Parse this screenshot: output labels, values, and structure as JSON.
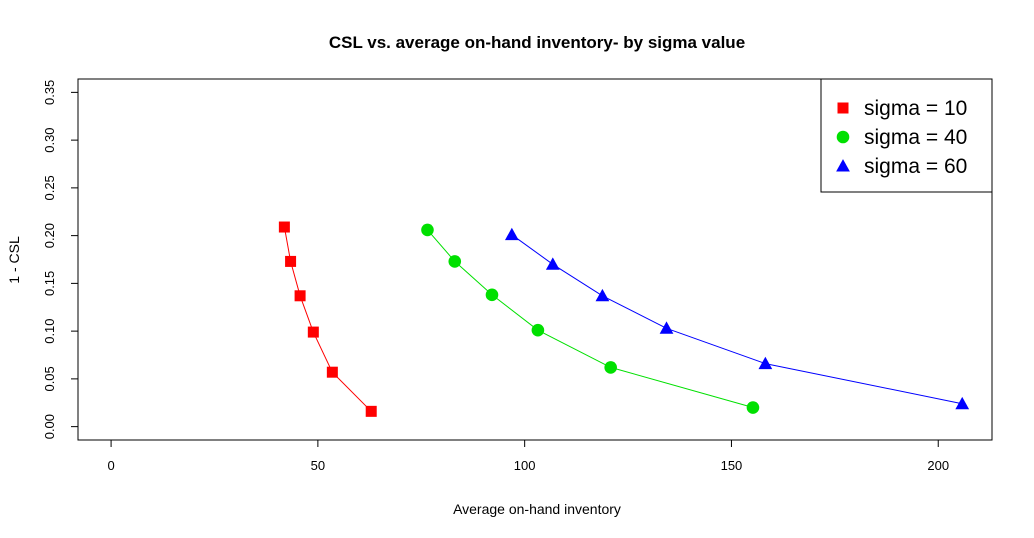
{
  "chart_data": {
    "type": "scatter",
    "title": "CSL vs. average on-hand inventory- by sigma value",
    "xlabel": "Average on-hand inventory",
    "ylabel": "1 - CSL",
    "xlim": [
      -8,
      213
    ],
    "ylim": [
      -0.014,
      0.364
    ],
    "x_ticks": [
      0,
      50,
      100,
      150,
      200
    ],
    "x_tick_labels": [
      "0",
      "50",
      "100",
      "150",
      "200"
    ],
    "y_ticks": [
      0.0,
      0.05,
      0.1,
      0.15,
      0.2,
      0.25,
      0.3,
      0.35
    ],
    "y_tick_labels": [
      "0.00",
      "0.05",
      "0.10",
      "0.15",
      "0.20",
      "0.25",
      "0.30",
      "0.35"
    ],
    "grid": false,
    "legend_position": "top-right",
    "series": [
      {
        "name": "sigma = 10",
        "color": "#ff0000",
        "marker": "square",
        "points": [
          [
            41.9,
            0.209
          ],
          [
            43.4,
            0.173
          ],
          [
            45.7,
            0.137
          ],
          [
            48.9,
            0.099
          ],
          [
            53.5,
            0.057
          ],
          [
            62.9,
            0.016
          ]
        ]
      },
      {
        "name": "sigma = 40",
        "color": "#00e000",
        "marker": "circle",
        "points": [
          [
            76.5,
            0.206
          ],
          [
            83.1,
            0.173
          ],
          [
            92.1,
            0.138
          ],
          [
            103.2,
            0.101
          ],
          [
            120.8,
            0.062
          ],
          [
            155.2,
            0.02
          ]
        ]
      },
      {
        "name": "sigma = 60",
        "color": "#0000ff",
        "marker": "triangle",
        "points": [
          [
            96.9,
            0.201
          ],
          [
            106.8,
            0.17
          ],
          [
            118.8,
            0.137
          ],
          [
            134.3,
            0.103
          ],
          [
            158.2,
            0.066
          ],
          [
            205.8,
            0.024
          ]
        ]
      }
    ]
  }
}
